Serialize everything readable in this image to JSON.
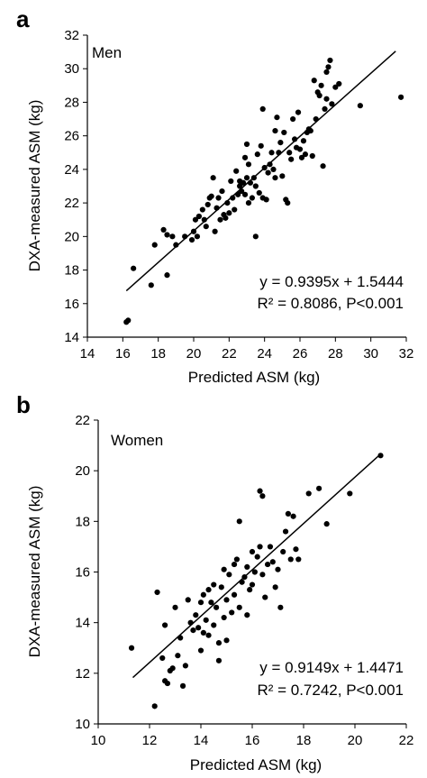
{
  "chart_data": [
    {
      "type": "scatter",
      "panel": "a",
      "group_label": "Men",
      "xlabel": "Predicted ASM (kg)",
      "ylabel": "DXA-measured ASM (kg)",
      "xlim": [
        14,
        32
      ],
      "ylim": [
        14,
        32
      ],
      "xticks": [
        "14",
        "16",
        "18",
        "20",
        "22",
        "24",
        "26",
        "28",
        "30",
        "32"
      ],
      "yticks": [
        "14",
        "16",
        "18",
        "20",
        "22",
        "24",
        "26",
        "28",
        "30",
        "32"
      ],
      "equation": "y = 0.9395x + 1.5444",
      "stats": "R² = 0.8086, P<0.001",
      "fit": {
        "slope": 0.9395,
        "intercept": 1.5444,
        "x_start": 16.2,
        "x_end": 31.4
      },
      "points": [
        [
          16.2,
          14.9
        ],
        [
          16.3,
          15.0
        ],
        [
          16.6,
          18.1
        ],
        [
          17.6,
          17.1
        ],
        [
          17.8,
          19.5
        ],
        [
          18.3,
          20.4
        ],
        [
          18.5,
          20.1
        ],
        [
          18.5,
          17.7
        ],
        [
          18.8,
          20.0
        ],
        [
          19.0,
          19.5
        ],
        [
          19.5,
          20.0
        ],
        [
          19.9,
          19.8
        ],
        [
          20.0,
          20.3
        ],
        [
          20.1,
          21.0
        ],
        [
          20.2,
          20.0
        ],
        [
          20.3,
          21.2
        ],
        [
          20.5,
          21.6
        ],
        [
          20.6,
          21.0
        ],
        [
          20.7,
          20.6
        ],
        [
          20.8,
          21.9
        ],
        [
          20.9,
          22.3
        ],
        [
          21.0,
          22.4
        ],
        [
          21.1,
          23.5
        ],
        [
          21.2,
          20.3
        ],
        [
          21.3,
          21.7
        ],
        [
          21.4,
          22.3
        ],
        [
          21.5,
          21.0
        ],
        [
          21.6,
          22.7
        ],
        [
          21.7,
          21.3
        ],
        [
          21.8,
          21.1
        ],
        [
          21.9,
          22.0
        ],
        [
          22.0,
          21.4
        ],
        [
          22.1,
          23.3
        ],
        [
          22.2,
          22.3
        ],
        [
          22.3,
          21.6
        ],
        [
          22.4,
          23.9
        ],
        [
          22.5,
          22.5
        ],
        [
          22.6,
          23.0
        ],
        [
          22.6,
          23.3
        ],
        [
          22.7,
          22.7
        ],
        [
          22.8,
          23.2
        ],
        [
          22.9,
          24.7
        ],
        [
          22.9,
          22.5
        ],
        [
          23.0,
          25.5
        ],
        [
          23.0,
          23.5
        ],
        [
          23.1,
          24.3
        ],
        [
          23.1,
          22.0
        ],
        [
          23.2,
          23.2
        ],
        [
          23.3,
          22.3
        ],
        [
          23.4,
          23.5
        ],
        [
          23.5,
          23.0
        ],
        [
          23.5,
          20.0
        ],
        [
          23.6,
          24.9
        ],
        [
          23.7,
          22.6
        ],
        [
          23.8,
          25.4
        ],
        [
          23.9,
          22.3
        ],
        [
          23.9,
          27.6
        ],
        [
          24.0,
          24.1
        ],
        [
          24.1,
          22.2
        ],
        [
          24.2,
          23.8
        ],
        [
          24.3,
          24.3
        ],
        [
          24.4,
          25.0
        ],
        [
          24.5,
          24.0
        ],
        [
          24.6,
          26.3
        ],
        [
          24.6,
          23.5
        ],
        [
          24.7,
          27.1
        ],
        [
          24.8,
          25.0
        ],
        [
          24.9,
          25.6
        ],
        [
          25.0,
          23.6
        ],
        [
          25.1,
          26.2
        ],
        [
          25.2,
          22.2
        ],
        [
          25.3,
          22.0
        ],
        [
          25.4,
          25.0
        ],
        [
          25.5,
          24.6
        ],
        [
          25.6,
          27.0
        ],
        [
          25.7,
          25.8
        ],
        [
          25.8,
          25.3
        ],
        [
          25.9,
          27.4
        ],
        [
          26.0,
          25.2
        ],
        [
          26.1,
          24.7
        ],
        [
          26.2,
          25.7
        ],
        [
          26.3,
          24.9
        ],
        [
          26.4,
          26.2
        ],
        [
          26.5,
          26.4
        ],
        [
          26.6,
          26.3
        ],
        [
          26.7,
          24.8
        ],
        [
          26.8,
          29.3
        ],
        [
          26.9,
          27.0
        ],
        [
          27.0,
          28.6
        ],
        [
          27.1,
          28.4
        ],
        [
          27.2,
          29.0
        ],
        [
          27.3,
          24.2
        ],
        [
          27.4,
          27.6
        ],
        [
          27.5,
          29.8
        ],
        [
          27.5,
          28.2
        ],
        [
          27.6,
          30.1
        ],
        [
          27.7,
          30.5
        ],
        [
          27.8,
          27.9
        ],
        [
          28.0,
          28.9
        ],
        [
          28.2,
          29.1
        ],
        [
          29.4,
          27.8
        ],
        [
          31.7,
          28.3
        ]
      ]
    },
    {
      "type": "scatter",
      "panel": "b",
      "group_label": "Women",
      "xlabel": "Predicted ASM  (kg)",
      "ylabel": "DXA-measured ASM (kg)",
      "xlim": [
        10,
        22
      ],
      "ylim": [
        10,
        22
      ],
      "xticks": [
        "10",
        "12",
        "14",
        "16",
        "18",
        "20",
        "22"
      ],
      "yticks": [
        "10",
        "12",
        "14",
        "16",
        "18",
        "20",
        "22"
      ],
      "equation": "y = 0.9149x + 1.4471",
      "stats": "R² = 0.7242, P<0.001",
      "fit": {
        "slope": 0.9149,
        "intercept": 1.4471,
        "x_start": 11.35,
        "x_end": 21.0
      },
      "points": [
        [
          11.3,
          13.0
        ],
        [
          12.2,
          10.7
        ],
        [
          12.3,
          15.2
        ],
        [
          12.5,
          12.6
        ],
        [
          12.6,
          11.7
        ],
        [
          12.6,
          13.9
        ],
        [
          12.7,
          11.6
        ],
        [
          12.8,
          12.1
        ],
        [
          12.9,
          12.2
        ],
        [
          13.0,
          14.6
        ],
        [
          13.1,
          12.7
        ],
        [
          13.2,
          13.4
        ],
        [
          13.3,
          11.5
        ],
        [
          13.4,
          12.3
        ],
        [
          13.5,
          14.9
        ],
        [
          13.6,
          14.0
        ],
        [
          13.7,
          13.7
        ],
        [
          13.8,
          14.3
        ],
        [
          13.9,
          13.8
        ],
        [
          14.0,
          14.8
        ],
        [
          14.0,
          12.9
        ],
        [
          14.1,
          13.6
        ],
        [
          14.1,
          15.1
        ],
        [
          14.2,
          14.1
        ],
        [
          14.3,
          13.5
        ],
        [
          14.3,
          15.3
        ],
        [
          14.4,
          14.8
        ],
        [
          14.5,
          13.9
        ],
        [
          14.5,
          15.5
        ],
        [
          14.6,
          14.6
        ],
        [
          14.7,
          12.5
        ],
        [
          14.7,
          13.2
        ],
        [
          14.8,
          15.4
        ],
        [
          14.9,
          14.2
        ],
        [
          14.9,
          16.1
        ],
        [
          15.0,
          14.9
        ],
        [
          15.0,
          13.3
        ],
        [
          15.1,
          15.9
        ],
        [
          15.2,
          14.4
        ],
        [
          15.3,
          16.3
        ],
        [
          15.3,
          15.1
        ],
        [
          15.4,
          16.5
        ],
        [
          15.5,
          18.0
        ],
        [
          15.5,
          14.6
        ],
        [
          15.6,
          15.6
        ],
        [
          15.7,
          15.8
        ],
        [
          15.8,
          16.2
        ],
        [
          15.8,
          14.3
        ],
        [
          15.9,
          15.3
        ],
        [
          16.0,
          16.8
        ],
        [
          16.0,
          15.5
        ],
        [
          16.1,
          16.0
        ],
        [
          16.2,
          16.6
        ],
        [
          16.3,
          19.2
        ],
        [
          16.3,
          17.0
        ],
        [
          16.4,
          19.0
        ],
        [
          16.4,
          15.9
        ],
        [
          16.5,
          15.0
        ],
        [
          16.6,
          16.3
        ],
        [
          16.7,
          17.0
        ],
        [
          16.8,
          16.4
        ],
        [
          16.9,
          15.4
        ],
        [
          17.0,
          16.1
        ],
        [
          17.1,
          14.6
        ],
        [
          17.2,
          16.8
        ],
        [
          17.3,
          17.6
        ],
        [
          17.4,
          18.3
        ],
        [
          17.5,
          16.5
        ],
        [
          17.6,
          18.2
        ],
        [
          17.7,
          16.9
        ],
        [
          17.8,
          16.5
        ],
        [
          18.2,
          19.1
        ],
        [
          18.6,
          19.3
        ],
        [
          18.9,
          17.9
        ],
        [
          19.8,
          19.1
        ],
        [
          21.0,
          20.6
        ]
      ]
    }
  ]
}
